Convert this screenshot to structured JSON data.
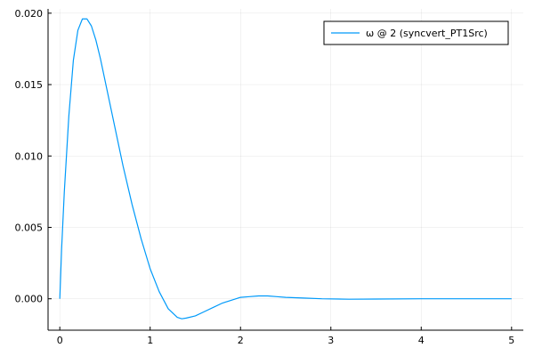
{
  "chart_data": {
    "type": "line",
    "title": "",
    "xlabel": "",
    "ylabel": "",
    "xlim": [
      -0.13,
      5.13
    ],
    "ylim": [
      -0.0022,
      0.0203
    ],
    "xticks": [
      0,
      1,
      2,
      3,
      4,
      5
    ],
    "xtick_labels": [
      "0",
      "1",
      "2",
      "3",
      "4",
      "5"
    ],
    "yticks": [
      0.0,
      0.005,
      0.01,
      0.015,
      0.02
    ],
    "ytick_labels": [
      "0.000",
      "0.005",
      "0.010",
      "0.015",
      "0.020"
    ],
    "grid": true,
    "legend_position": "top-right",
    "series": [
      {
        "name": "ω @ 2 (syncvert_PT1Src)",
        "color": "#009AFA",
        "x": [
          0,
          0.02,
          0.05,
          0.1,
          0.15,
          0.2,
          0.25,
          0.3,
          0.35,
          0.4,
          0.45,
          0.5,
          0.6,
          0.7,
          0.8,
          0.9,
          1.0,
          1.1,
          1.2,
          1.3,
          1.35,
          1.4,
          1.5,
          1.6,
          1.7,
          1.8,
          1.9,
          2.0,
          2.1,
          2.2,
          2.3,
          2.4,
          2.5,
          2.7,
          2.9,
          3.2,
          3.5,
          4.0,
          4.5,
          5.0
        ],
        "y": [
          0.0,
          0.0035,
          0.0075,
          0.0128,
          0.0167,
          0.0188,
          0.0196,
          0.0196,
          0.0191,
          0.0181,
          0.0168,
          0.0153,
          0.0123,
          0.0093,
          0.0066,
          0.0042,
          0.0021,
          0.0005,
          -0.0007,
          -0.0013,
          -0.0014,
          -0.00135,
          -0.0012,
          -0.0009,
          -0.0006,
          -0.0003,
          -0.0001,
          0.0001,
          0.00015,
          0.0002,
          0.0002,
          0.00015,
          0.0001,
          5e-05,
          0.0,
          -3e-05,
          -2e-05,
          0.0,
          0.0,
          0.0
        ]
      }
    ]
  }
}
